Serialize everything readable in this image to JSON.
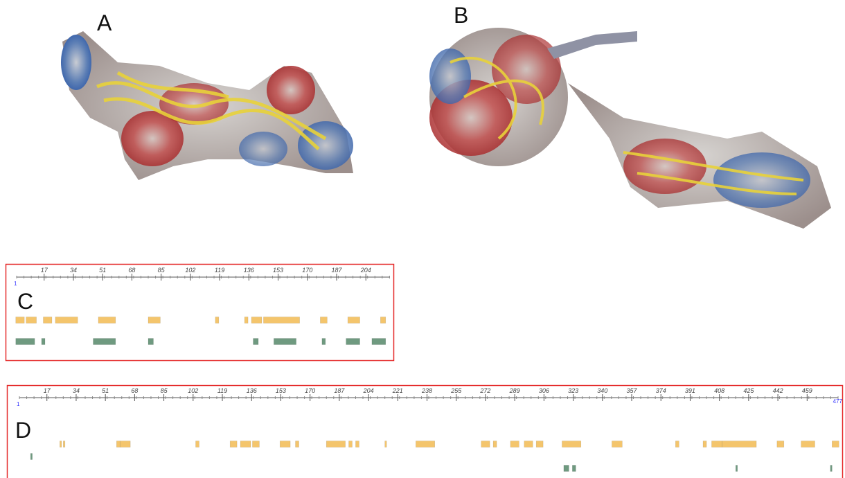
{
  "panels": [
    {
      "label": "A"
    },
    {
      "label": "B"
    }
  ],
  "tracks": [
    {
      "label": "C",
      "xlim": [
        1,
        218
      ],
      "ruler": {
        "start": 1,
        "ticks": [
          17,
          34,
          51,
          68,
          85,
          102,
          119,
          136,
          153,
          170,
          187,
          204
        ]
      },
      "rows": [
        {
          "color": "#f4c56c",
          "segments": [
            [
              1,
              5
            ],
            [
              7,
              12
            ],
            [
              17,
              21
            ],
            [
              24,
              36
            ],
            [
              49,
              58
            ],
            [
              78,
              84
            ],
            [
              117,
              118
            ],
            [
              134,
              135
            ],
            [
              138,
              143
            ],
            [
              145,
              165
            ],
            [
              178,
              181
            ],
            [
              194,
              200
            ],
            [
              213,
              215
            ]
          ]
        },
        {
          "color": "#6f9a80",
          "segments": [
            [
              1,
              11
            ],
            [
              16,
              17
            ],
            [
              46,
              58
            ],
            [
              78,
              80
            ],
            [
              139,
              141
            ],
            [
              151,
              163
            ],
            [
              179,
              180
            ],
            [
              193,
              200
            ],
            [
              208,
              215
            ]
          ]
        }
      ]
    },
    {
      "label": "D",
      "xlim": [
        1,
        477
      ],
      "ruler": {
        "start": 1,
        "end": 477,
        "ticks": [
          17,
          34,
          51,
          68,
          85,
          102,
          119,
          136,
          153,
          170,
          187,
          204,
          221,
          238,
          255,
          272,
          289,
          306,
          323,
          340,
          357,
          374,
          391,
          408,
          425,
          442,
          459
        ]
      },
      "rows": [
        {
          "color": "#f4c56c",
          "segments": [
            [
              25,
              25
            ],
            [
              27,
              27
            ],
            [
              58,
              59
            ],
            [
              60,
              65
            ],
            [
              104,
              105
            ],
            [
              124,
              127
            ],
            [
              130,
              135
            ],
            [
              137,
              140
            ],
            [
              153,
              158
            ],
            [
              162,
              163
            ],
            [
              180,
              190
            ],
            [
              193,
              194
            ],
            [
              197,
              198
            ],
            [
              214,
              214
            ],
            [
              232,
              242
            ],
            [
              270,
              274
            ],
            [
              277,
              278
            ],
            [
              287,
              291
            ],
            [
              295,
              299
            ],
            [
              302,
              305
            ],
            [
              317,
              327
            ],
            [
              346,
              351
            ],
            [
              383,
              384
            ],
            [
              399,
              400
            ],
            [
              404,
              409
            ],
            [
              410,
              429
            ],
            [
              442,
              445
            ],
            [
              456,
              463
            ],
            [
              474,
              477
            ]
          ]
        },
        {
          "color": "#6f9a80",
          "segments": [
            [
              8,
              8
            ]
          ]
        },
        {
          "color": "#6f9a80",
          "segments": [
            [
              318,
              320
            ],
            [
              323,
              324
            ],
            [
              418,
              418
            ],
            [
              473,
              473
            ]
          ]
        }
      ]
    }
  ]
}
